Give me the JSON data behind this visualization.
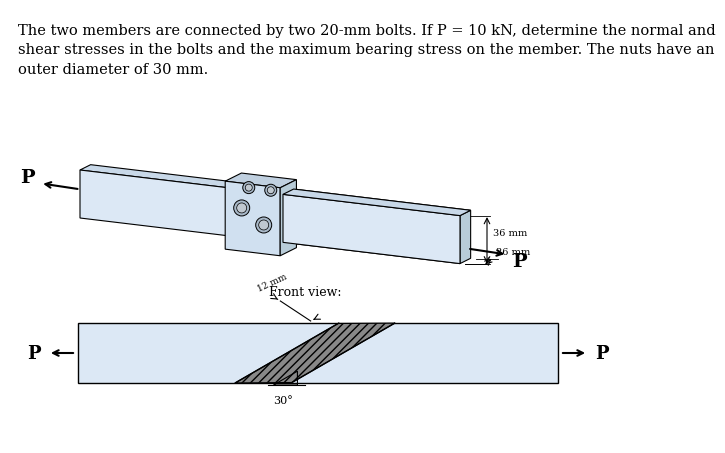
{
  "title_text": "The two members are connected by two 20-mm bolts. If P = 10 kN, determine the normal and\nshear stresses in the bolts and the maximum bearing stress on the member. The nuts have an\nouter diameter of 30 mm.",
  "title_fontsize": 10.5,
  "bg_color": "#ffffff",
  "member_fill": "#dce6f1",
  "member_edge": "#000000",
  "dim_36_1": "36 mm",
  "dim_36_2": "36 mm",
  "front_view_label": "Front view:",
  "angle_label": "30°",
  "dim_label_top": "12 mm",
  "P_label": "P"
}
